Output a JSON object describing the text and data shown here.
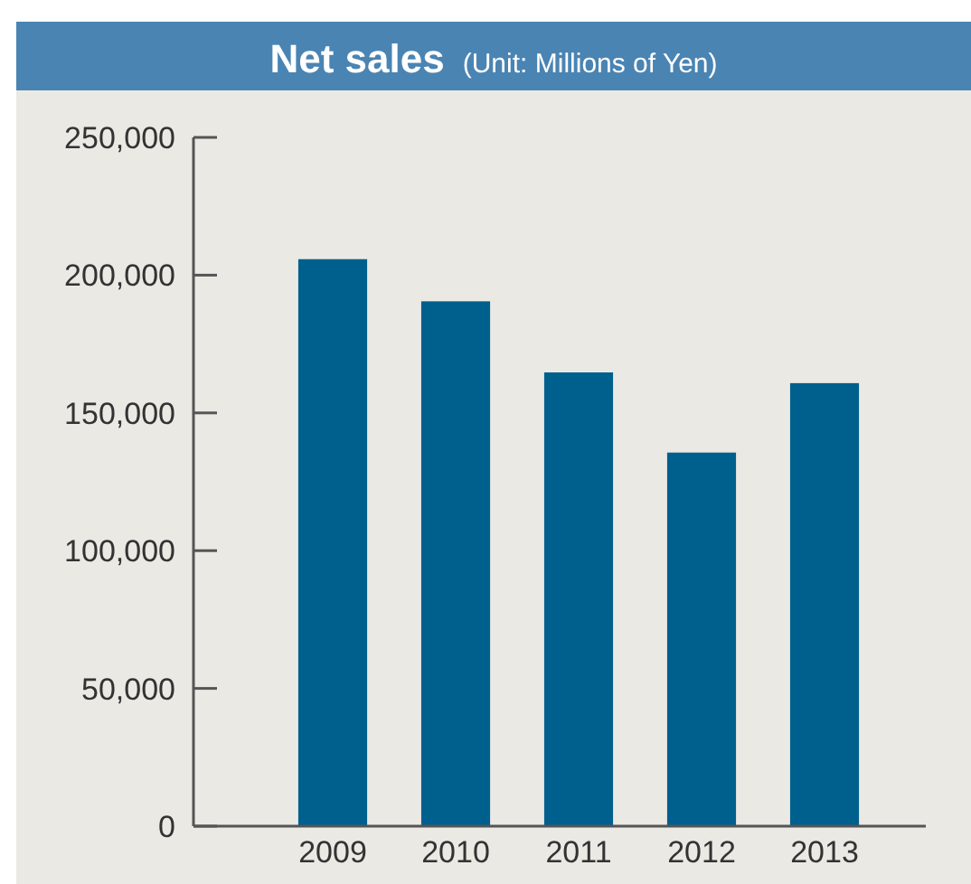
{
  "chart_data": {
    "type": "bar",
    "title": "Net sales",
    "subtitle": "(Unit: Millions of Yen)",
    "categories": [
      "2009",
      "2010",
      "2011",
      "2012",
      "2013"
    ],
    "values": [
      205800,
      190500,
      164700,
      135600,
      160800
    ],
    "color": "#00608d",
    "ylim": [
      0,
      250000
    ],
    "yticks": [
      {
        "value": 0,
        "label": "0"
      },
      {
        "value": 50000,
        "label": "50,000"
      },
      {
        "value": 100000,
        "label": "100,000"
      },
      {
        "value": 150000,
        "label": "150,000"
      },
      {
        "value": 200000,
        "label": "200,000"
      },
      {
        "value": 250000,
        "label": "250,000"
      }
    ],
    "grid": false
  }
}
